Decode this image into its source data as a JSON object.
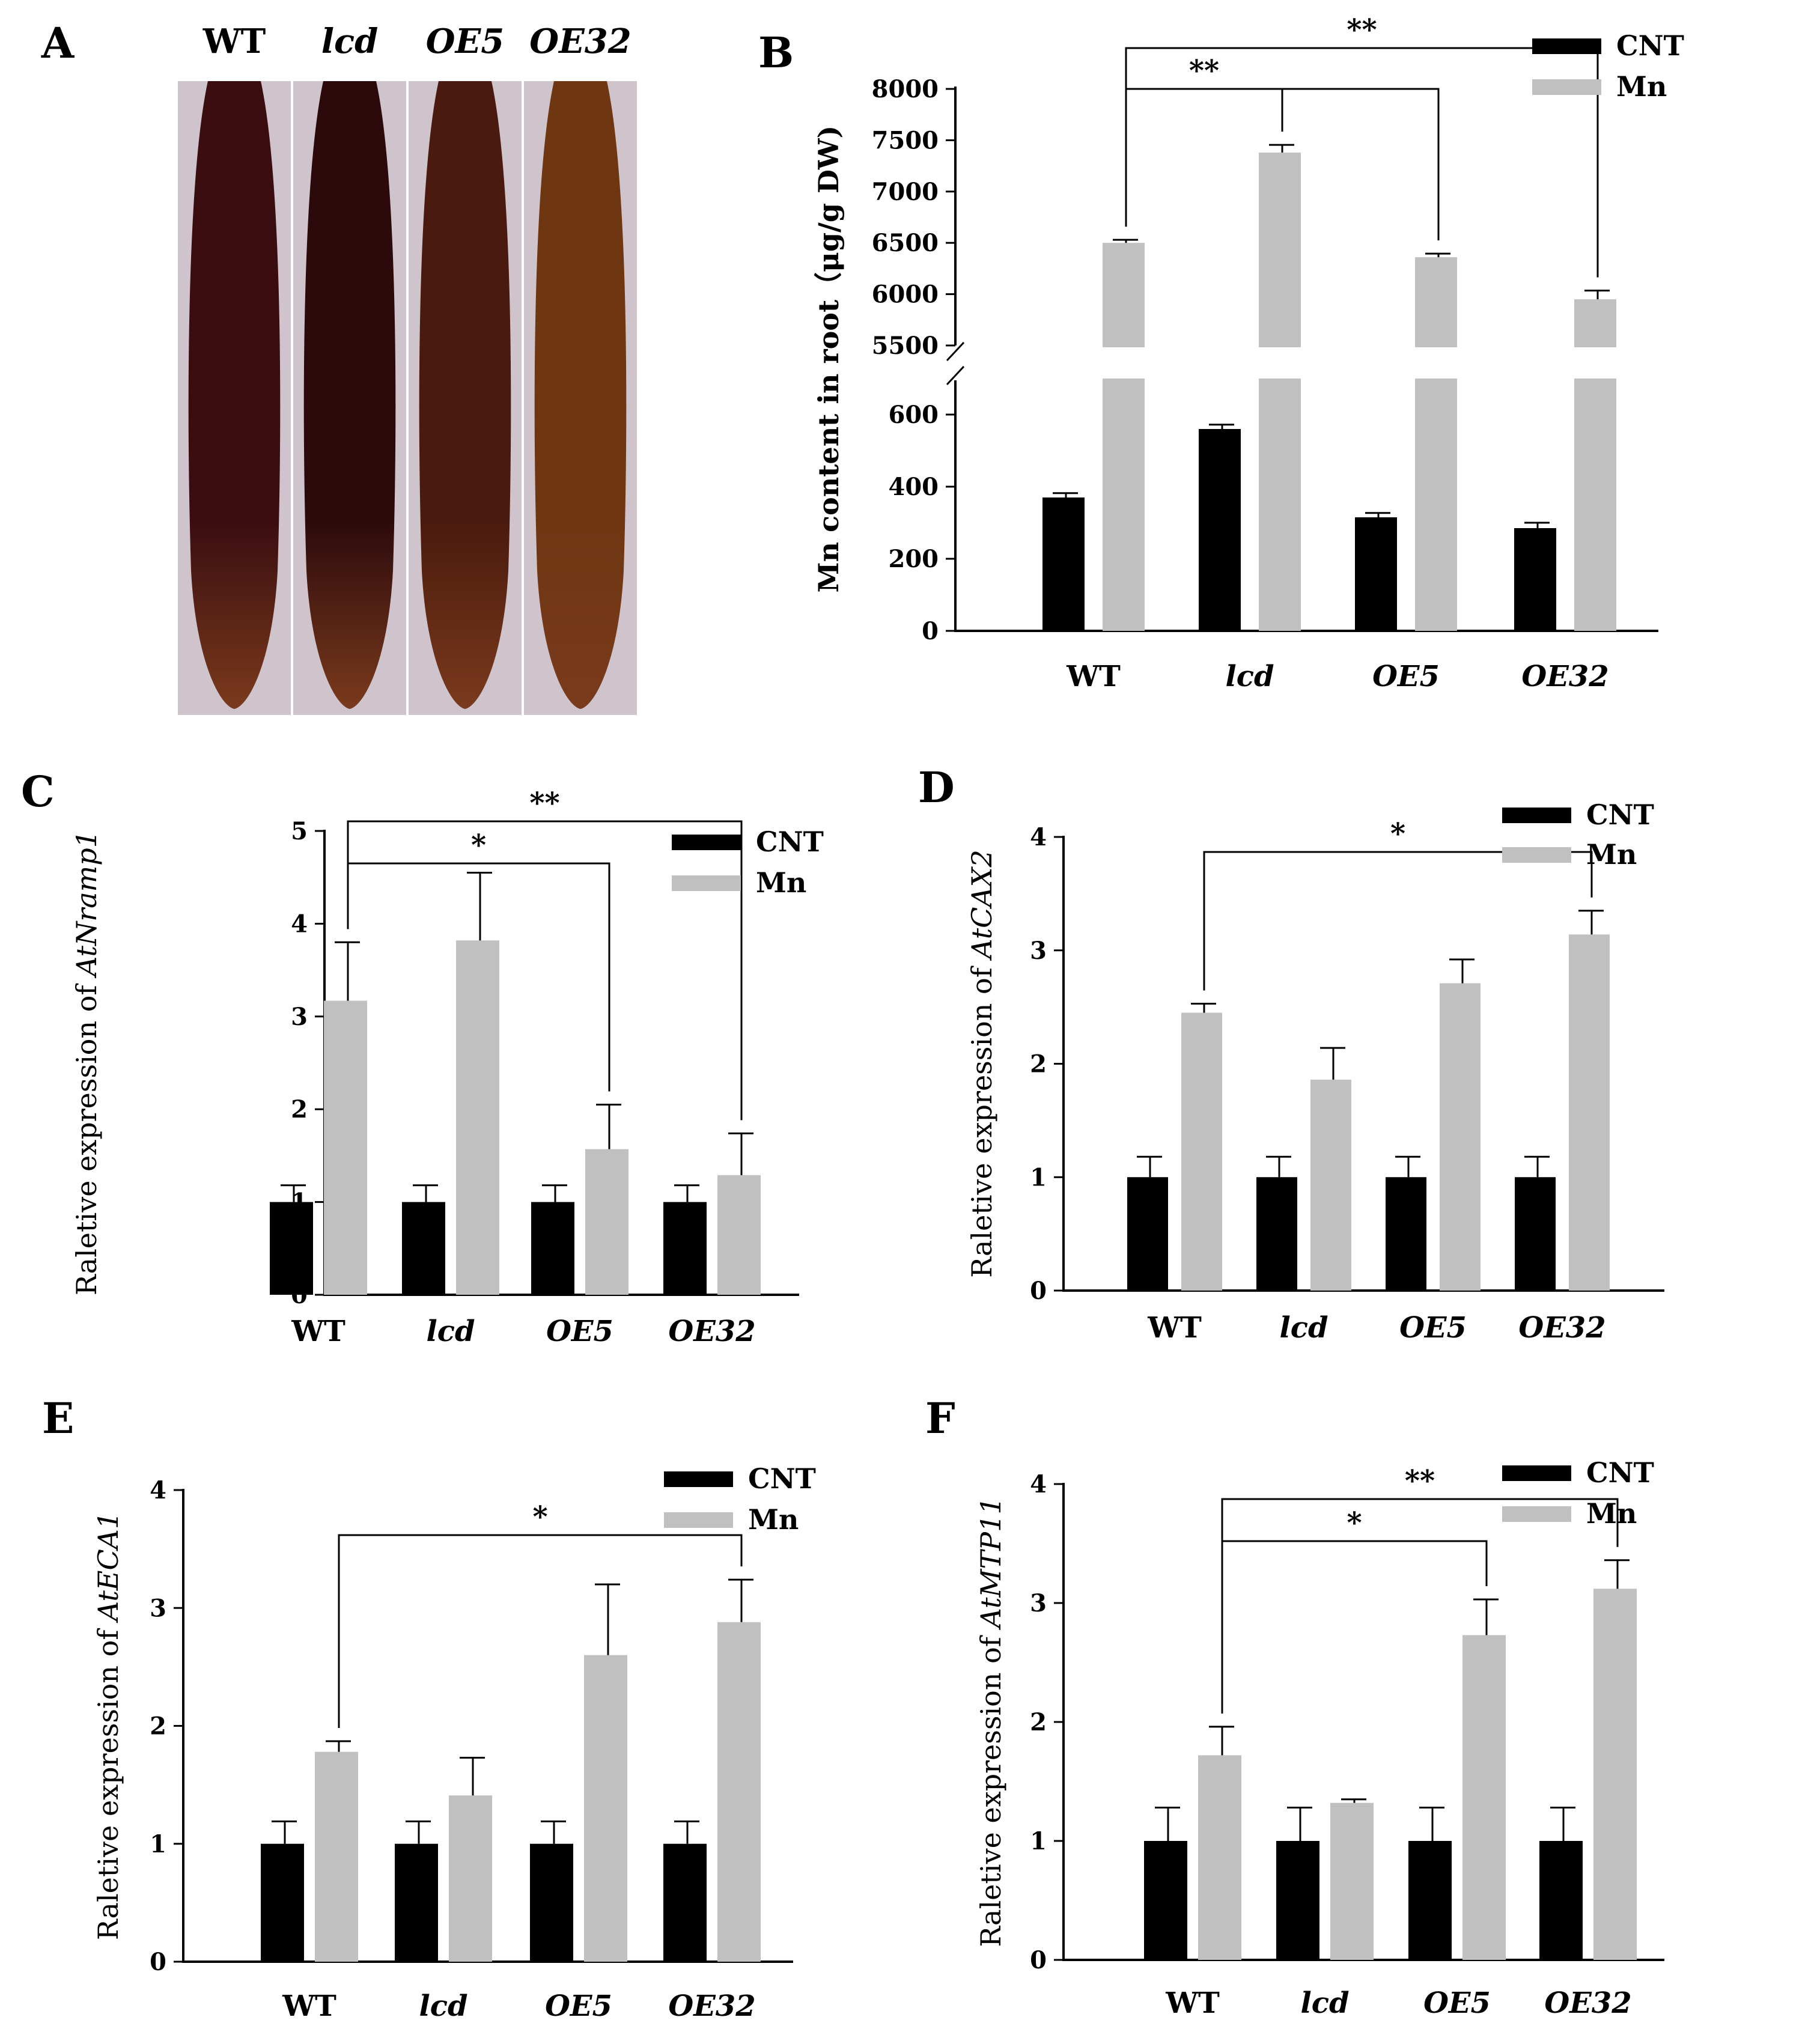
{
  "figure": {
    "panel_letters": [
      "A",
      "B",
      "C",
      "D",
      "E",
      "F"
    ]
  },
  "micrograph": {
    "labels": [
      "WT",
      "lcd",
      "OE5",
      "OE32"
    ],
    "tones": [
      "#3a0d10",
      "#2c0a0c",
      "#4a1a0e",
      "#6e3712"
    ]
  },
  "colors": {
    "cnt": "#000000",
    "mn": "#c0c0c0",
    "axis": "#000000"
  },
  "chart_data": [
    {
      "id": "B",
      "type": "bar",
      "broken_y_axis": true,
      "title": "",
      "xlabel": "",
      "ylabel": "Mn content in root（μg/g DW)",
      "categories": [
        "WT",
        "lcd",
        "OE5",
        "OE32"
      ],
      "series": [
        {
          "name": "CNT",
          "values": [
            370,
            560,
            315,
            285
          ],
          "errors": [
            12,
            12,
            12,
            15
          ]
        },
        {
          "name": "Mn",
          "values": [
            6500,
            7380,
            6360,
            5950
          ],
          "errors": [
            30,
            75,
            35,
            85
          ]
        }
      ],
      "ylim_lower": [
        0,
        700
      ],
      "ylim_upper": [
        5500,
        8000
      ],
      "yticks_lower": [
        0,
        200,
        400,
        600
      ],
      "yticks_upper": [
        5500,
        6000,
        6500,
        7000,
        7500,
        8000
      ],
      "significance": [
        {
          "from": "WT",
          "to": "lcd",
          "label": "**"
        },
        {
          "from": "WT",
          "to": "OE5",
          "label": ""
        },
        {
          "from": "WT",
          "to": "OE32",
          "label": "**"
        }
      ]
    },
    {
      "id": "C",
      "type": "bar",
      "title": "",
      "xlabel": "",
      "ylabel_prefix": "Raletive expression of ",
      "ylabel_gene": "AtNramp1",
      "categories": [
        "WT",
        "lcd",
        "OE5",
        "OE32"
      ],
      "series": [
        {
          "name": "CNT",
          "values": [
            1,
            1,
            1,
            1
          ],
          "errors": [
            0.18,
            0.18,
            0.18,
            0.18
          ]
        },
        {
          "name": "Mn",
          "values": [
            3.17,
            3.82,
            1.57,
            1.29
          ],
          "errors": [
            0.63,
            0.73,
            0.48,
            0.45
          ]
        }
      ],
      "ylim": [
        0,
        5
      ],
      "yticks": [
        0,
        1,
        2,
        3,
        4,
        5
      ],
      "significance": [
        {
          "from": "WT",
          "to": "OE5",
          "label": "*"
        },
        {
          "from": "WT",
          "to": "OE32",
          "label": "**"
        }
      ]
    },
    {
      "id": "D",
      "type": "bar",
      "title": "",
      "xlabel": "",
      "ylabel_prefix": "Raletive expression of ",
      "ylabel_gene": "AtCAX2",
      "categories": [
        "WT",
        "lcd",
        "OE5",
        "OE32"
      ],
      "series": [
        {
          "name": "CNT",
          "values": [
            1,
            1,
            1,
            1
          ],
          "errors": [
            0.18,
            0.18,
            0.18,
            0.18
          ]
        },
        {
          "name": "Mn",
          "values": [
            2.45,
            1.86,
            2.71,
            3.14
          ],
          "errors": [
            0.08,
            0.28,
            0.21,
            0.21
          ]
        }
      ],
      "ylim": [
        0,
        4
      ],
      "yticks": [
        0,
        1,
        2,
        3,
        4
      ],
      "significance": [
        {
          "from": "WT",
          "to": "OE32",
          "label": "*"
        }
      ]
    },
    {
      "id": "E",
      "type": "bar",
      "title": "",
      "xlabel": "",
      "ylabel_prefix": "Raletive expression of ",
      "ylabel_gene": "AtECA1",
      "categories": [
        "WT",
        "lcd",
        "OE5",
        "OE32"
      ],
      "series": [
        {
          "name": "CNT",
          "values": [
            1,
            1,
            1,
            1
          ],
          "errors": [
            0.19,
            0.19,
            0.19,
            0.19
          ]
        },
        {
          "name": "Mn",
          "values": [
            1.78,
            1.41,
            2.6,
            2.88
          ],
          "errors": [
            0.09,
            0.32,
            0.6,
            0.36
          ]
        }
      ],
      "ylim": [
        0,
        4
      ],
      "yticks": [
        0,
        1,
        2,
        3,
        4
      ],
      "significance": [
        {
          "from": "WT",
          "to": "OE32",
          "label": "*"
        }
      ]
    },
    {
      "id": "F",
      "type": "bar",
      "title": "",
      "xlabel": "",
      "ylabel_prefix": "Raletive expression of ",
      "ylabel_gene": "AtMTP11",
      "categories": [
        "WT",
        "lcd",
        "OE5",
        "OE32"
      ],
      "series": [
        {
          "name": "CNT",
          "values": [
            1,
            1,
            1,
            1
          ],
          "errors": [
            0.28,
            0.28,
            0.28,
            0.28
          ]
        },
        {
          "name": "Mn",
          "values": [
            1.72,
            1.32,
            2.73,
            3.12
          ],
          "errors": [
            0.24,
            0.03,
            0.3,
            0.24
          ]
        }
      ],
      "ylim": [
        0,
        4
      ],
      "yticks": [
        0,
        1,
        2,
        3,
        4
      ],
      "significance": [
        {
          "from": "WT",
          "to": "OE5",
          "label": "*"
        },
        {
          "from": "WT",
          "to": "OE32",
          "label": "**"
        }
      ]
    }
  ]
}
